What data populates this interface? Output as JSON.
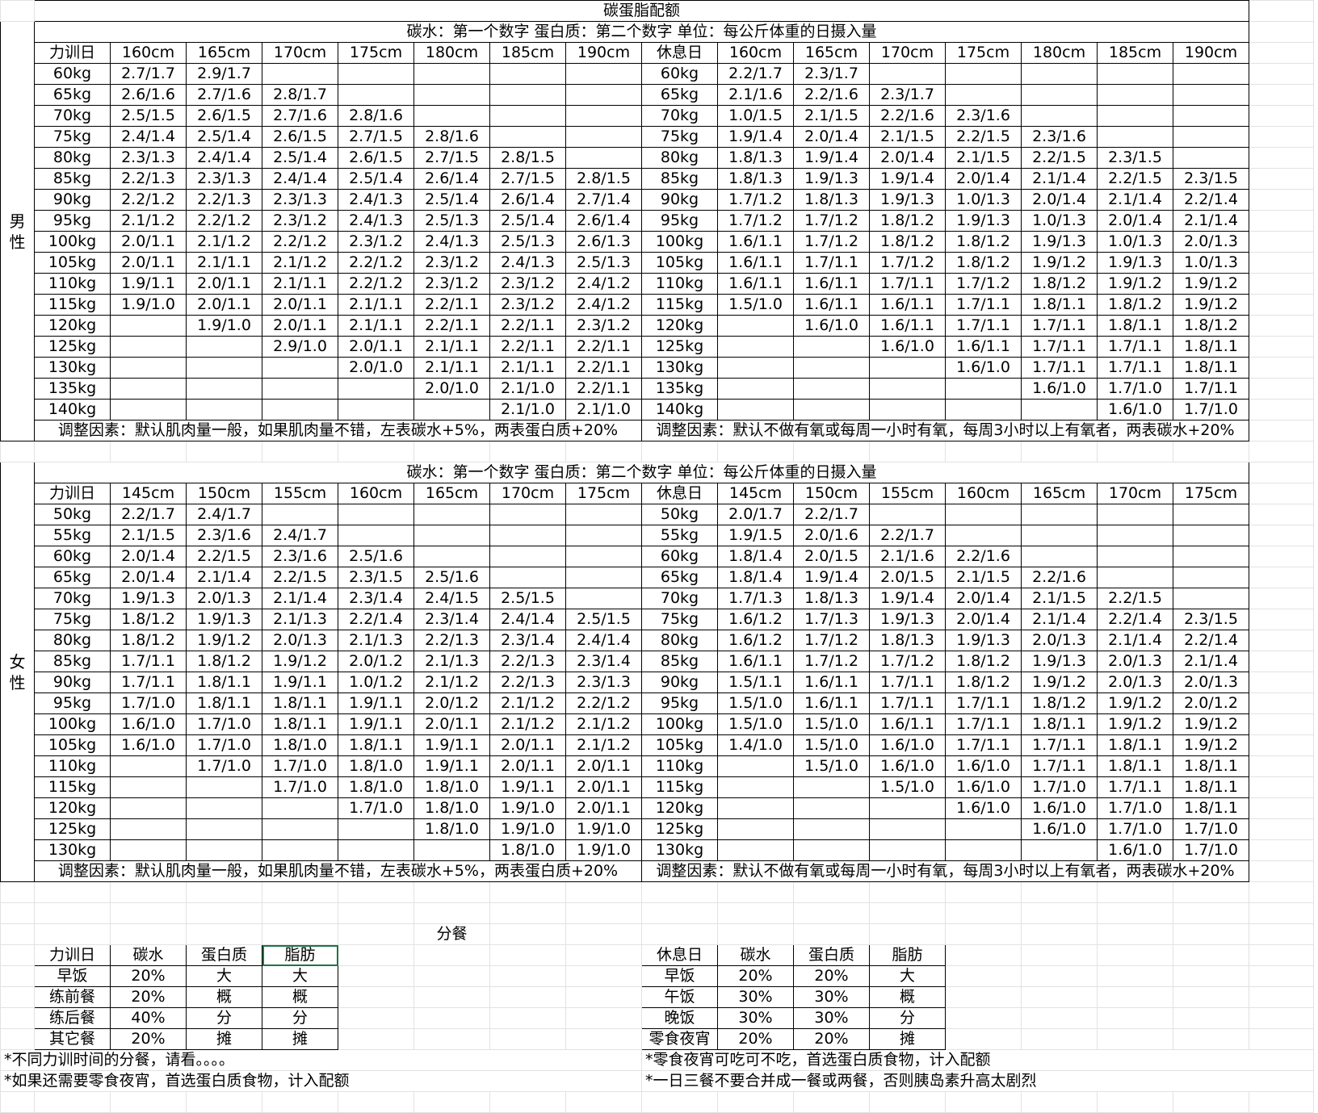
{
  "title": "碳蛋脂配额",
  "subtitle": "碳水：第一个数字  蛋白质：第二个数字  单位：每公斤体重的日摄入量",
  "male": {
    "gender_label": "男性",
    "train_header": "力训日",
    "rest_header": "休息日",
    "heights": [
      "160cm",
      "165cm",
      "170cm",
      "175cm",
      "180cm",
      "185cm",
      "190cm"
    ],
    "rows": [
      {
        "w": "60kg",
        "train": [
          "2.7/1.7",
          "2.9/1.7",
          "",
          "",
          "",
          "",
          ""
        ],
        "rest": [
          "2.2/1.7",
          "2.3/1.7",
          "",
          "",
          "",
          "",
          ""
        ]
      },
      {
        "w": "65kg",
        "train": [
          "2.6/1.6",
          "2.7/1.6",
          "2.8/1.7",
          "",
          "",
          "",
          ""
        ],
        "rest": [
          "2.1/1.6",
          "2.2/1.6",
          "2.3/1.7",
          "",
          "",
          "",
          ""
        ]
      },
      {
        "w": "70kg",
        "train": [
          "2.5/1.5",
          "2.6/1.5",
          "2.7/1.6",
          "2.8/1.6",
          "",
          "",
          ""
        ],
        "rest": [
          "1.0/1.5",
          "2.1/1.5",
          "2.2/1.6",
          "2.3/1.6",
          "",
          "",
          ""
        ]
      },
      {
        "w": "75kg",
        "train": [
          "2.4/1.4",
          "2.5/1.4",
          "2.6/1.5",
          "2.7/1.5",
          "2.8/1.6",
          "",
          ""
        ],
        "rest": [
          "1.9/1.4",
          "2.0/1.4",
          "2.1/1.5",
          "2.2/1.5",
          "2.3/1.6",
          "",
          ""
        ]
      },
      {
        "w": "80kg",
        "train": [
          "2.3/1.3",
          "2.4/1.4",
          "2.5/1.4",
          "2.6/1.5",
          "2.7/1.5",
          "2.8/1.5",
          ""
        ],
        "rest": [
          "1.8/1.3",
          "1.9/1.4",
          "2.0/1.4",
          "2.1/1.5",
          "2.2/1.5",
          "2.3/1.5",
          ""
        ]
      },
      {
        "w": "85kg",
        "train": [
          "2.2/1.3",
          "2.3/1.3",
          "2.4/1.4",
          "2.5/1.4",
          "2.6/1.4",
          "2.7/1.5",
          "2.8/1.5"
        ],
        "rest": [
          "1.8/1.3",
          "1.9/1.3",
          "1.9/1.4",
          "2.0/1.4",
          "2.1/1.4",
          "2.2/1.5",
          "2.3/1.5"
        ]
      },
      {
        "w": "90kg",
        "train": [
          "2.2/1.2",
          "2.2/1.3",
          "2.3/1.3",
          "2.4/1.3",
          "2.5/1.4",
          "2.6/1.4",
          "2.7/1.4"
        ],
        "rest": [
          "1.7/1.2",
          "1.8/1.3",
          "1.9/1.3",
          "1.0/1.3",
          "2.0/1.4",
          "2.1/1.4",
          "2.2/1.4"
        ]
      },
      {
        "w": "95kg",
        "train": [
          "2.1/1.2",
          "2.2/1.2",
          "2.3/1.2",
          "2.4/1.3",
          "2.5/1.3",
          "2.5/1.4",
          "2.6/1.4"
        ],
        "rest": [
          "1.7/1.2",
          "1.7/1.2",
          "1.8/1.2",
          "1.9/1.3",
          "1.0/1.3",
          "2.0/1.4",
          "2.1/1.4"
        ]
      },
      {
        "w": "100kg",
        "train": [
          "2.0/1.1",
          "2.1/1.2",
          "2.2/1.2",
          "2.3/1.2",
          "2.4/1.3",
          "2.5/1.3",
          "2.6/1.3"
        ],
        "rest": [
          "1.6/1.1",
          "1.7/1.2",
          "1.8/1.2",
          "1.8/1.2",
          "1.9/1.3",
          "1.0/1.3",
          "2.0/1.3"
        ]
      },
      {
        "w": "105kg",
        "train": [
          "2.0/1.1",
          "2.1/1.1",
          "2.1/1.2",
          "2.2/1.2",
          "2.3/1.2",
          "2.4/1.3",
          "2.5/1.3"
        ],
        "rest": [
          "1.6/1.1",
          "1.7/1.1",
          "1.7/1.2",
          "1.8/1.2",
          "1.9/1.2",
          "1.9/1.3",
          "1.0/1.3"
        ]
      },
      {
        "w": "110kg",
        "train": [
          "1.9/1.1",
          "2.0/1.1",
          "2.1/1.1",
          "2.2/1.2",
          "2.3/1.2",
          "2.3/1.2",
          "2.4/1.2"
        ],
        "rest": [
          "1.6/1.1",
          "1.6/1.1",
          "1.7/1.1",
          "1.7/1.2",
          "1.8/1.2",
          "1.9/1.2",
          "1.9/1.2"
        ]
      },
      {
        "w": "115kg",
        "train": [
          "1.9/1.0",
          "2.0/1.1",
          "2.0/1.1",
          "2.1/1.1",
          "2.2/1.1",
          "2.3/1.2",
          "2.4/1.2"
        ],
        "rest": [
          "1.5/1.0",
          "1.6/1.1",
          "1.6/1.1",
          "1.7/1.1",
          "1.8/1.1",
          "1.8/1.2",
          "1.9/1.2"
        ]
      },
      {
        "w": "120kg",
        "train": [
          "",
          "1.9/1.0",
          "2.0/1.1",
          "2.1/1.1",
          "2.2/1.1",
          "2.2/1.1",
          "2.3/1.2"
        ],
        "rest": [
          "",
          "1.6/1.0",
          "1.6/1.1",
          "1.7/1.1",
          "1.7/1.1",
          "1.8/1.1",
          "1.8/1.2"
        ]
      },
      {
        "w": "125kg",
        "train": [
          "",
          "",
          "2.9/1.0",
          "2.0/1.1",
          "2.1/1.1",
          "2.2/1.1",
          "2.2/1.1"
        ],
        "rest": [
          "",
          "",
          "1.6/1.0",
          "1.6/1.1",
          "1.7/1.1",
          "1.7/1.1",
          "1.8/1.1"
        ]
      },
      {
        "w": "130kg",
        "train": [
          "",
          "",
          "",
          "2.0/1.0",
          "2.1/1.1",
          "2.1/1.1",
          "2.2/1.1"
        ],
        "rest": [
          "",
          "",
          "",
          "1.6/1.0",
          "1.7/1.1",
          "1.7/1.1",
          "1.8/1.1"
        ]
      },
      {
        "w": "135kg",
        "train": [
          "",
          "",
          "",
          "",
          "2.0/1.0",
          "2.1/1.0",
          "2.2/1.1"
        ],
        "rest": [
          "",
          "",
          "",
          "",
          "1.6/1.0",
          "1.7/1.0",
          "1.7/1.1"
        ]
      },
      {
        "w": "140kg",
        "train": [
          "",
          "",
          "",
          "",
          "",
          "2.1/1.0",
          "2.1/1.0"
        ],
        "rest": [
          "",
          "",
          "",
          "",
          "",
          "1.6/1.0",
          "1.7/1.0"
        ]
      }
    ],
    "note_train": "调整因素：默认肌肉量一般，如果肌肉量不错，左表碳水+5%，两表蛋白质+20%",
    "note_rest": "调整因素：默认不做有氧或每周一小时有氧，每周3小时以上有氧者，两表碳水+20%"
  },
  "female": {
    "gender_label": "女性",
    "train_header": "力训日",
    "rest_header": "休息日",
    "heights": [
      "145cm",
      "150cm",
      "155cm",
      "160cm",
      "165cm",
      "170cm",
      "175cm"
    ],
    "rows": [
      {
        "w": "50kg",
        "train": [
          "2.2/1.7",
          "2.4/1.7",
          "",
          "",
          "",
          "",
          ""
        ],
        "rest": [
          "2.0/1.7",
          "2.2/1.7",
          "",
          "",
          "",
          "",
          ""
        ]
      },
      {
        "w": "55kg",
        "train": [
          "2.1/1.5",
          "2.3/1.6",
          "2.4/1.7",
          "",
          "",
          "",
          ""
        ],
        "rest": [
          "1.9/1.5",
          "2.0/1.6",
          "2.2/1.7",
          "",
          "",
          "",
          ""
        ]
      },
      {
        "w": "60kg",
        "train": [
          "2.0/1.4",
          "2.2/1.5",
          "2.3/1.6",
          "2.5/1.6",
          "",
          "",
          ""
        ],
        "rest": [
          "1.8/1.4",
          "2.0/1.5",
          "2.1/1.6",
          "2.2/1.6",
          "",
          "",
          ""
        ]
      },
      {
        "w": "65kg",
        "train": [
          "2.0/1.4",
          "2.1/1.4",
          "2.2/1.5",
          "2.3/1.5",
          "2.5/1.6",
          "",
          ""
        ],
        "rest": [
          "1.8/1.4",
          "1.9/1.4",
          "2.0/1.5",
          "2.1/1.5",
          "2.2/1.6",
          "",
          ""
        ]
      },
      {
        "w": "70kg",
        "train": [
          "1.9/1.3",
          "2.0/1.3",
          "2.1/1.4",
          "2.3/1.4",
          "2.4/1.5",
          "2.5/1.5",
          ""
        ],
        "rest": [
          "1.7/1.3",
          "1.8/1.3",
          "1.9/1.4",
          "2.0/1.4",
          "2.1/1.5",
          "2.2/1.5",
          ""
        ]
      },
      {
        "w": "75kg",
        "train": [
          "1.8/1.2",
          "1.9/1.3",
          "2.1/1.3",
          "2.2/1.4",
          "2.3/1.4",
          "2.4/1.4",
          "2.5/1.5"
        ],
        "rest": [
          "1.6/1.2",
          "1.7/1.3",
          "1.9/1.3",
          "2.0/1.4",
          "2.1/1.4",
          "2.2/1.4",
          "2.3/1.5"
        ]
      },
      {
        "w": "80kg",
        "train": [
          "1.8/1.2",
          "1.9/1.2",
          "2.0/1.3",
          "2.1/1.3",
          "2.2/1.3",
          "2.3/1.4",
          "2.4/1.4"
        ],
        "rest": [
          "1.6/1.2",
          "1.7/1.2",
          "1.8/1.3",
          "1.9/1.3",
          "2.0/1.3",
          "2.1/1.4",
          "2.2/1.4"
        ]
      },
      {
        "w": "85kg",
        "train": [
          "1.7/1.1",
          "1.8/1.2",
          "1.9/1.2",
          "2.0/1.2",
          "2.1/1.3",
          "2.2/1.3",
          "2.3/1.4"
        ],
        "rest": [
          "1.6/1.1",
          "1.7/1.2",
          "1.7/1.2",
          "1.8/1.2",
          "1.9/1.3",
          "2.0/1.3",
          "2.1/1.4"
        ]
      },
      {
        "w": "90kg",
        "train": [
          "1.7/1.1",
          "1.8/1.1",
          "1.9/1.1",
          "1.0/1.2",
          "2.1/1.2",
          "2.2/1.3",
          "2.3/1.3"
        ],
        "rest": [
          "1.5/1.1",
          "1.6/1.1",
          "1.7/1.1",
          "1.8/1.2",
          "1.9/1.2",
          "2.0/1.3",
          "2.0/1.3"
        ]
      },
      {
        "w": "95kg",
        "train": [
          "1.7/1.0",
          "1.8/1.1",
          "1.8/1.1",
          "1.9/1.1",
          "2.0/1.2",
          "2.1/1.2",
          "2.2/1.2"
        ],
        "rest": [
          "1.5/1.0",
          "1.6/1.1",
          "1.7/1.1",
          "1.7/1.1",
          "1.8/1.2",
          "1.9/1.2",
          "2.0/1.2"
        ]
      },
      {
        "w": "100kg",
        "train": [
          "1.6/1.0",
          "1.7/1.0",
          "1.8/1.1",
          "1.9/1.1",
          "2.0/1.1",
          "2.1/1.2",
          "2.1/1.2"
        ],
        "rest": [
          "1.5/1.0",
          "1.5/1.0",
          "1.6/1.1",
          "1.7/1.1",
          "1.8/1.1",
          "1.9/1.2",
          "1.9/1.2"
        ]
      },
      {
        "w": "105kg",
        "train": [
          "1.6/1.0",
          "1.7/1.0",
          "1.8/1.0",
          "1.8/1.1",
          "1.9/1.1",
          "2.0/1.1",
          "2.1/1.2"
        ],
        "rest": [
          "1.4/1.0",
          "1.5/1.0",
          "1.6/1.0",
          "1.7/1.1",
          "1.7/1.1",
          "1.8/1.1",
          "1.9/1.2"
        ]
      },
      {
        "w": "110kg",
        "train": [
          "",
          "1.7/1.0",
          "1.7/1.0",
          "1.8/1.0",
          "1.9/1.1",
          "2.0/1.1",
          "2.0/1.1"
        ],
        "rest": [
          "",
          "1.5/1.0",
          "1.6/1.0",
          "1.6/1.0",
          "1.7/1.1",
          "1.8/1.1",
          "1.8/1.1"
        ]
      },
      {
        "w": "115kg",
        "train": [
          "",
          "",
          "1.7/1.0",
          "1.8/1.0",
          "1.8/1.0",
          "1.9/1.1",
          "2.0/1.1"
        ],
        "rest": [
          "",
          "",
          "1.5/1.0",
          "1.6/1.0",
          "1.7/1.0",
          "1.7/1.1",
          "1.8/1.1"
        ]
      },
      {
        "w": "120kg",
        "train": [
          "",
          "",
          "",
          "1.7/1.0",
          "1.8/1.0",
          "1.9/1.0",
          "2.0/1.1"
        ],
        "rest": [
          "",
          "",
          "",
          "1.6/1.0",
          "1.6/1.0",
          "1.7/1.0",
          "1.8/1.1"
        ]
      },
      {
        "w": "125kg",
        "train": [
          "",
          "",
          "",
          "",
          "1.8/1.0",
          "1.9/1.0",
          "1.9/1.0"
        ],
        "rest": [
          "",
          "",
          "",
          "",
          "1.6/1.0",
          "1.7/1.0",
          "1.7/1.0"
        ]
      },
      {
        "w": "130kg",
        "train": [
          "",
          "",
          "",
          "",
          "",
          "1.8/1.0",
          "1.9/1.0"
        ],
        "rest": [
          "",
          "",
          "",
          "",
          "",
          "1.6/1.0",
          "1.7/1.0"
        ]
      }
    ],
    "note_train": "调整因素：默认肌肉量一般，如果肌肉量不错，左表碳水+5%，两表蛋白质+20%",
    "note_rest": "调整因素：默认不做有氧或每周一小时有氧，每周3小时以上有氧者，两表碳水+20%"
  },
  "meals": {
    "title": "分餐",
    "train": {
      "headers": [
        "力训日",
        "碳水",
        "蛋白质",
        "脂肪"
      ],
      "rows": [
        [
          "早饭",
          "20%",
          "大",
          "大"
        ],
        [
          "练前餐",
          "20%",
          "概",
          "概"
        ],
        [
          "练后餐",
          "40%",
          "分",
          "分"
        ],
        [
          "其它餐",
          "20%",
          "摊",
          "摊"
        ]
      ],
      "notes": [
        "*不同力训时间的分餐，请看。。。。",
        "*如果还需要零食夜宵，首选蛋白质食物，计入配额"
      ]
    },
    "rest": {
      "headers": [
        "休息日",
        "碳水",
        "蛋白质",
        "脂肪"
      ],
      "rows": [
        [
          "早饭",
          "20%",
          "20%",
          "大"
        ],
        [
          "午饭",
          "30%",
          "30%",
          "概"
        ],
        [
          "晚饭",
          "30%",
          "30%",
          "分"
        ],
        [
          "零食夜宵",
          "20%",
          "20%",
          "摊"
        ]
      ],
      "notes": [
        "*零食夜宵可吃可不吃，首选蛋白质食物，计入配额",
        "*一日三餐不要合并成一餐或两餐，否则胰岛素升高太剧烈"
      ]
    }
  }
}
